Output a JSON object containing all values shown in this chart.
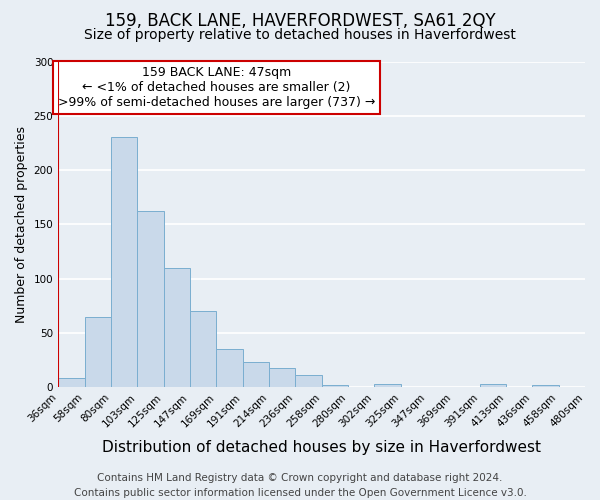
{
  "title": "159, BACK LANE, HAVERFORDWEST, SA61 2QY",
  "subtitle": "Size of property relative to detached houses in Haverfordwest",
  "xlabel": "Distribution of detached houses by size in Haverfordwest",
  "ylabel": "Number of detached properties",
  "bin_values": [
    8,
    65,
    230,
    162,
    110,
    70,
    35,
    23,
    18,
    11,
    2,
    0,
    3,
    0,
    0,
    0,
    3,
    0,
    2,
    0
  ],
  "bar_labels": [
    "36sqm",
    "58sqm",
    "80sqm",
    "103sqm",
    "125sqm",
    "147sqm",
    "169sqm",
    "191sqm",
    "214sqm",
    "236sqm",
    "258sqm",
    "280sqm",
    "302sqm",
    "325sqm",
    "347sqm",
    "369sqm",
    "391sqm",
    "413sqm",
    "436sqm",
    "458sqm",
    "480sqm"
  ],
  "bar_color": "#c9d9ea",
  "bar_edge_color": "#7aaed0",
  "highlight_color": "#cc0000",
  "ylim": [
    0,
    300
  ],
  "yticks": [
    0,
    50,
    100,
    150,
    200,
    250,
    300
  ],
  "annotation_title": "159 BACK LANE: 47sqm",
  "annotation_line1": "← <1% of detached houses are smaller (2)",
  "annotation_line2": ">99% of semi-detached houses are larger (737) →",
  "annotation_box_facecolor": "#ffffff",
  "annotation_box_edge_color": "#cc0000",
  "footer_line1": "Contains HM Land Registry data © Crown copyright and database right 2024.",
  "footer_line2": "Contains public sector information licensed under the Open Government Licence v3.0.",
  "background_color": "#e8eef4",
  "plot_background_color": "#e8eef4",
  "grid_color": "#ffffff",
  "title_fontsize": 12,
  "subtitle_fontsize": 10,
  "xlabel_fontsize": 11,
  "ylabel_fontsize": 9,
  "tick_fontsize": 7.5,
  "footer_fontsize": 7.5,
  "annotation_fontsize": 9
}
